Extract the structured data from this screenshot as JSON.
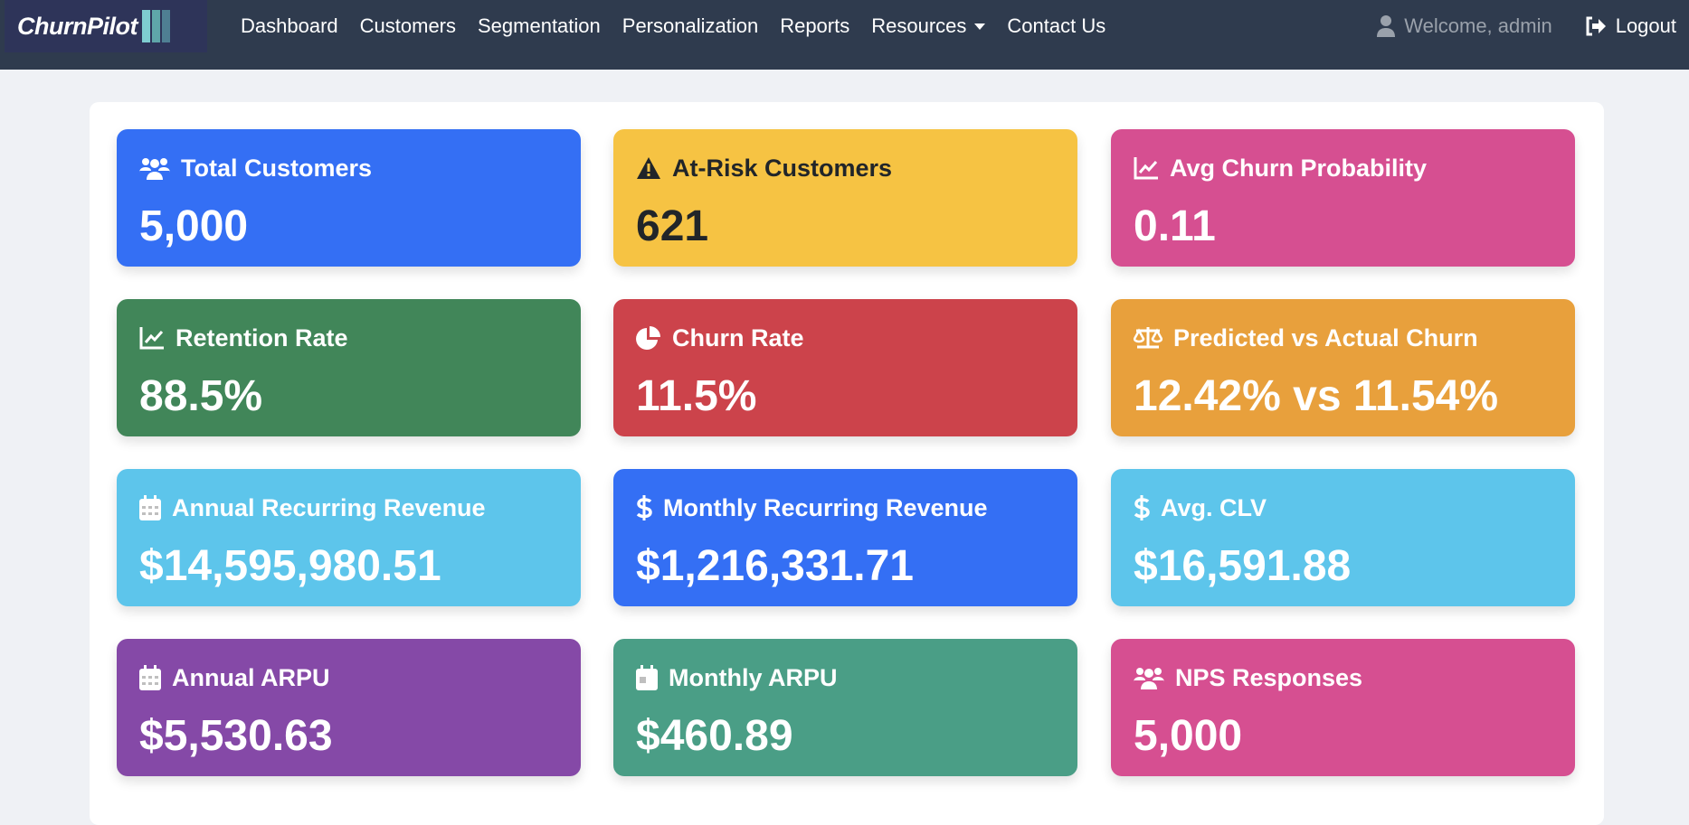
{
  "brand": {
    "name": "ChurnPilot",
    "bar_colors": [
      "#7ecdd0",
      "#5fa6a9",
      "#4f7f93"
    ]
  },
  "nav": {
    "items": [
      "Dashboard",
      "Customers",
      "Segmentation",
      "Personalization",
      "Reports",
      "Resources",
      "Contact Us"
    ],
    "welcome": "Welcome, admin",
    "logout": "Logout"
  },
  "cards": [
    {
      "title": "Total Customers",
      "value": "5,000",
      "icon": "users-icon",
      "color": "#346ff4"
    },
    {
      "title": "At-Risk Customers",
      "value": "621",
      "icon": "warning-icon",
      "color": "#f6c343"
    },
    {
      "title": "Avg Churn Probability",
      "value": "0.11",
      "icon": "line-chart-icon",
      "color": "#d64f91"
    },
    {
      "title": "Retention Rate",
      "value": "88.5%",
      "icon": "line-chart-icon",
      "color": "#418659"
    },
    {
      "title": "Churn Rate",
      "value": "11.5%",
      "icon": "pie-chart-icon",
      "color": "#cc434b"
    },
    {
      "title": "Predicted vs Actual Churn",
      "value": "12.42% vs 11.54%",
      "icon": "scale-icon",
      "color": "#e8a03c"
    },
    {
      "title": "Annual Recurring Revenue",
      "value": "$14,595,980.51",
      "icon": "calendar-icon",
      "color": "#5dc5eb"
    },
    {
      "title": "Monthly Recurring Revenue",
      "value": "$1,216,331.71",
      "icon": "dollar-icon",
      "color": "#346ff4"
    },
    {
      "title": "Avg. CLV",
      "value": "$16,591.88",
      "icon": "dollar-icon",
      "color": "#5dc5eb"
    },
    {
      "title": "Annual ARPU",
      "value": "$5,530.63",
      "icon": "calendar-icon",
      "color": "#8549a7"
    },
    {
      "title": "Monthly ARPU",
      "value": "$460.89",
      "icon": "calendar-day-icon",
      "color": "#4a9e86"
    },
    {
      "title": "NPS Responses",
      "value": "5,000",
      "icon": "users-icon",
      "color": "#d64f91"
    }
  ]
}
